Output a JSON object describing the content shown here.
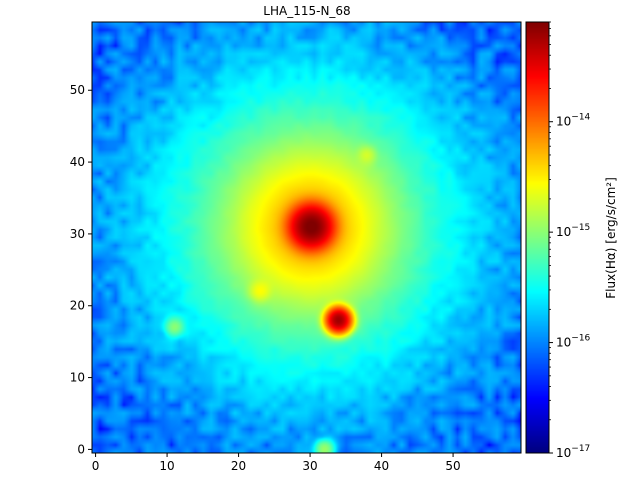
{
  "chart_data": {
    "type": "heatmap",
    "title": "LHA_115-N_68",
    "xlabel": "",
    "ylabel": "",
    "xlim": [
      -0.5,
      59.5
    ],
    "ylim": [
      -0.5,
      59.5
    ],
    "xticks": [
      0,
      10,
      20,
      30,
      40,
      50
    ],
    "yticks": [
      0,
      10,
      20,
      30,
      40,
      50
    ],
    "colormap": "jet",
    "colorbar": {
      "label": "Flux(Hα) [erg/s/cm²]",
      "scale": "log",
      "range": [
        1e-17,
        8e-14
      ],
      "ticks": [
        {
          "value": 1e-17,
          "base": "10",
          "exp": "−17"
        },
        {
          "value": 1e-16,
          "base": "10",
          "exp": "−16"
        },
        {
          "value": 1e-15,
          "base": "10",
          "exp": "−15"
        },
        {
          "value": 1e-14,
          "base": "10",
          "exp": "−14"
        }
      ]
    },
    "grid": false,
    "background_level": 7e-17,
    "sources": [
      {
        "x": 30.2,
        "y": 31.0,
        "peak": 8e-14,
        "sigma": 1.6
      },
      {
        "x": 30.0,
        "y": 31.0,
        "peak": 4.5e-15,
        "sigma": 5.2
      },
      {
        "x": 30.0,
        "y": 31.0,
        "peak": 1e-15,
        "sigma": 9.5
      },
      {
        "x": 30.0,
        "y": 31.0,
        "peak": 3e-16,
        "sigma": 15.0
      },
      {
        "x": 34.0,
        "y": 18.0,
        "peak": 6e-14,
        "sigma": 0.9
      },
      {
        "x": 23.0,
        "y": 22.0,
        "peak": 1.5e-15,
        "sigma": 0.9
      },
      {
        "x": 11.0,
        "y": 17.0,
        "peak": 8e-16,
        "sigma": 0.8
      },
      {
        "x": 38.0,
        "y": 41.0,
        "peak": 1e-15,
        "sigma": 0.8
      },
      {
        "x": 32.0,
        "y": 0.0,
        "peak": 1e-15,
        "sigma": 0.8
      }
    ]
  }
}
